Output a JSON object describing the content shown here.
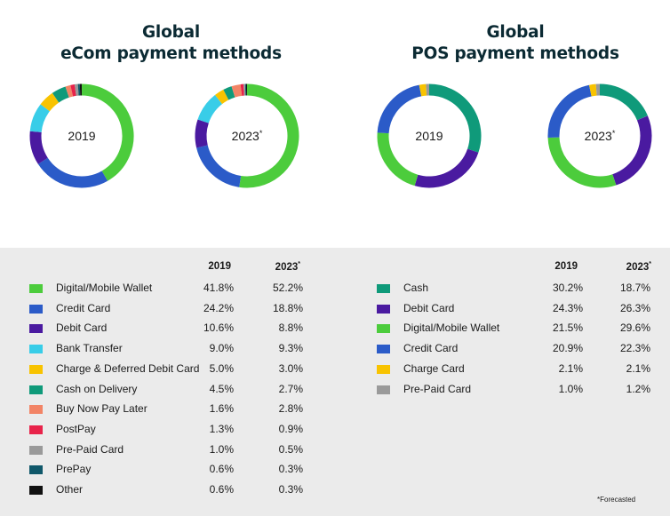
{
  "ecom": {
    "title_line1": "Global",
    "title_line2": "eCom payment methods",
    "header_2019": "2019",
    "header_2023": "2023",
    "header_2023_marker": "*"
  },
  "pos": {
    "title_line1": "Global",
    "title_line2": "POS payment methods",
    "header_2019": "2019",
    "header_2023": "2023",
    "header_2023_marker": "*"
  },
  "footnote": "*Forecasted",
  "colors": {
    "panel_bg": "#ebebeb",
    "title": "#0b2a33"
  },
  "chart_data": [
    {
      "type": "pie",
      "title": "Global eCom payment methods",
      "center_labels": [
        "2019",
        "2023*"
      ],
      "categories": [
        "Digital/Mobile Wallet",
        "Credit Card",
        "Debit Card",
        "Bank Transfer",
        "Charge & Deferred Debit Card",
        "Cash on Delivery",
        "Buy Now Pay Later",
        "PostPay",
        "Pre-Paid Card",
        "PrePay",
        "Other"
      ],
      "colors": [
        "#4ccc3c",
        "#2b5bc8",
        "#4a1aa0",
        "#38cde8",
        "#f8c300",
        "#0f9a7a",
        "#f28466",
        "#e8234a",
        "#9a9a9a",
        "#10586a",
        "#111111"
      ],
      "series": [
        {
          "name": "2019",
          "values": [
            41.8,
            24.2,
            10.6,
            9.0,
            5.0,
            4.5,
            1.6,
            1.3,
            1.0,
            0.6,
            0.6
          ],
          "labels": [
            "41.8%",
            "24.2%",
            "10.6%",
            "9.0%",
            "5.0%",
            "4.5%",
            "1.6%",
            "1.3%",
            "1.0%",
            "0.6%",
            "0.6%"
          ]
        },
        {
          "name": "2023*",
          "values": [
            52.2,
            18.8,
            8.8,
            9.3,
            3.0,
            2.7,
            2.8,
            0.9,
            0.5,
            0.3,
            0.3
          ],
          "labels": [
            "52.2%",
            "18.8%",
            "8.8%",
            "9.3%",
            "3.0%",
            "2.7%",
            "2.8%",
            "0.9%",
            "0.5%",
            "0.3%",
            "0.3%"
          ]
        }
      ]
    },
    {
      "type": "pie",
      "title": "Global POS payment methods",
      "center_labels": [
        "2019",
        "2023*"
      ],
      "categories": [
        "Cash",
        "Debit Card",
        "Digital/Mobile Wallet",
        "Credit Card",
        "Charge Card",
        "Pre-Paid Card"
      ],
      "colors": [
        "#0f9a7a",
        "#4a1aa0",
        "#4ccc3c",
        "#2b5bc8",
        "#f8c300",
        "#9a9a9a"
      ],
      "series": [
        {
          "name": "2019",
          "values": [
            30.2,
            24.3,
            21.5,
            20.9,
            2.1,
            1.0
          ],
          "labels": [
            "30.2%",
            "24.3%",
            "21.5%",
            "20.9%",
            "2.1%",
            "1.0%"
          ]
        },
        {
          "name": "2023*",
          "values": [
            18.7,
            26.3,
            29.6,
            22.3,
            2.1,
            1.2
          ],
          "labels": [
            "18.7%",
            "26.3%",
            "29.6%",
            "22.3%",
            "2.1%",
            "1.2%"
          ]
        }
      ]
    }
  ]
}
